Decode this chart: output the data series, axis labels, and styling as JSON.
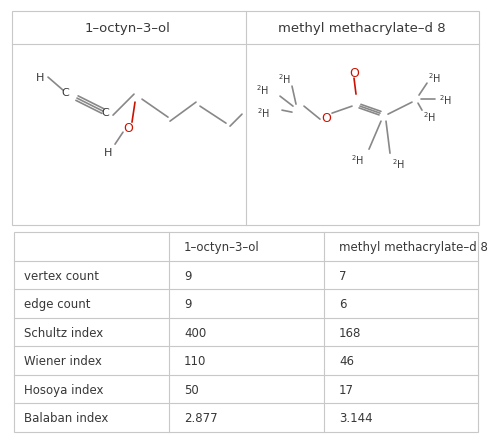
{
  "title_left": "1–octyn–3–ol",
  "title_right": "methyl methacrylate–d 8",
  "table_col0": [
    "",
    "vertex count",
    "edge count",
    "Schultz index",
    "Wiener index",
    "Hosoya index",
    "Balaban index"
  ],
  "table_col1": [
    "1–octyn–3–ol",
    "9",
    "9",
    "400",
    "110",
    "50",
    "2.877"
  ],
  "table_col2": [
    "methyl methacrylate–d 8",
    "7",
    "6",
    "168",
    "46",
    "17",
    "3.144"
  ],
  "bg_color": "#ffffff",
  "text_color": "#383838",
  "line_color": "#c8c8c8",
  "bond_color": "#888888",
  "o_color": "#cc1100",
  "font_size_title": 9.5,
  "font_size_table": 8.5,
  "font_size_atom": 8.0,
  "font_size_atom_o": 9.0,
  "font_size_h2": 7.0
}
